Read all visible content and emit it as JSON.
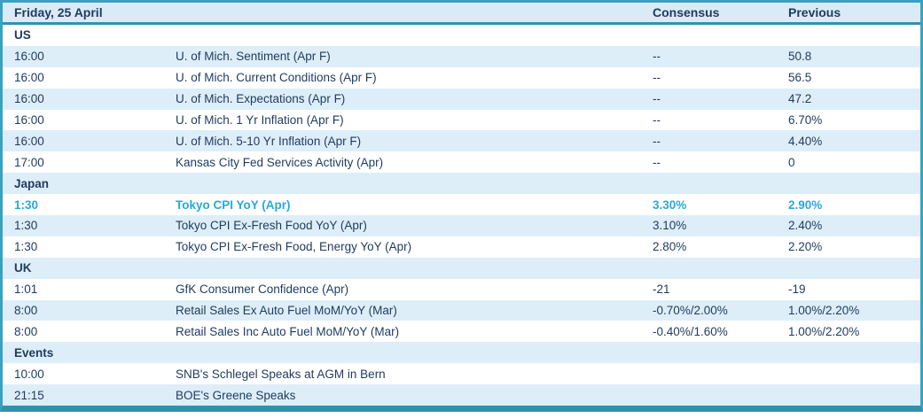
{
  "header": {
    "date_label": "Friday, 25 April",
    "consensus_label": "Consensus",
    "previous_label": "Previous"
  },
  "colors": {
    "border_teal": "#3aa2c0",
    "border_teal_dark": "#2e93af",
    "header_bg": "#d8ebf6",
    "row_alt_bg": "#ddeef8",
    "text_navy": "#1f3a5f",
    "highlight_cyan": "#29a8dc"
  },
  "rows": [
    {
      "type": "section",
      "label": "US"
    },
    {
      "type": "data",
      "time": "16:00",
      "event": "U. of Mich. Sentiment (Apr F)",
      "consensus": "--",
      "previous": "50.8"
    },
    {
      "type": "data",
      "time": "16:00",
      "event": "U. of Mich. Current Conditions (Apr F)",
      "consensus": "--",
      "previous": "56.5"
    },
    {
      "type": "data",
      "time": "16:00",
      "event": "U. of Mich. Expectations (Apr F)",
      "consensus": "--",
      "previous": "47.2"
    },
    {
      "type": "data",
      "time": "16:00",
      "event": "U. of Mich. 1 Yr Inflation (Apr F)",
      "consensus": "--",
      "previous": "6.70%"
    },
    {
      "type": "data",
      "time": "16:00",
      "event": "U. of Mich. 5-10 Yr Inflation (Apr F)",
      "consensus": "--",
      "previous": "4.40%"
    },
    {
      "type": "data",
      "time": "17:00",
      "event": "Kansas City Fed Services Activity (Apr)",
      "consensus": "--",
      "previous": "0"
    },
    {
      "type": "section",
      "label": "Japan"
    },
    {
      "type": "data",
      "time": "1:30",
      "event": "Tokyo CPI YoY (Apr)",
      "consensus": "3.30%",
      "previous": "2.90%",
      "highlight": true
    },
    {
      "type": "data",
      "time": "1:30",
      "event": "Tokyo CPI Ex-Fresh Food YoY (Apr)",
      "consensus": "3.10%",
      "previous": "2.40%"
    },
    {
      "type": "data",
      "time": "1:30",
      "event": "Tokyo CPI Ex-Fresh Food, Energy YoY (Apr)",
      "consensus": "2.80%",
      "previous": "2.20%"
    },
    {
      "type": "section",
      "label": "UK"
    },
    {
      "type": "data",
      "time": "1:01",
      "event": "GfK Consumer Confidence (Apr)",
      "consensus": "-21",
      "previous": "-19"
    },
    {
      "type": "data",
      "time": "8:00",
      "event": "Retail Sales Ex Auto Fuel MoM/YoY (Mar)",
      "consensus": "-0.70%/2.00%",
      "previous": "1.00%/2.20%"
    },
    {
      "type": "data",
      "time": "8:00",
      "event": "Retail Sales Inc Auto Fuel MoM/YoY (Mar)",
      "consensus": "-0.40%/1.60%",
      "previous": "1.00%/2.20%"
    },
    {
      "type": "section",
      "label": "Events"
    },
    {
      "type": "data",
      "time": "10:00",
      "event": "SNB's Schlegel Speaks at AGM in Bern",
      "consensus": "",
      "previous": ""
    },
    {
      "type": "data",
      "time": "21:15",
      "event": "BOE's Greene Speaks",
      "consensus": "",
      "previous": ""
    }
  ]
}
